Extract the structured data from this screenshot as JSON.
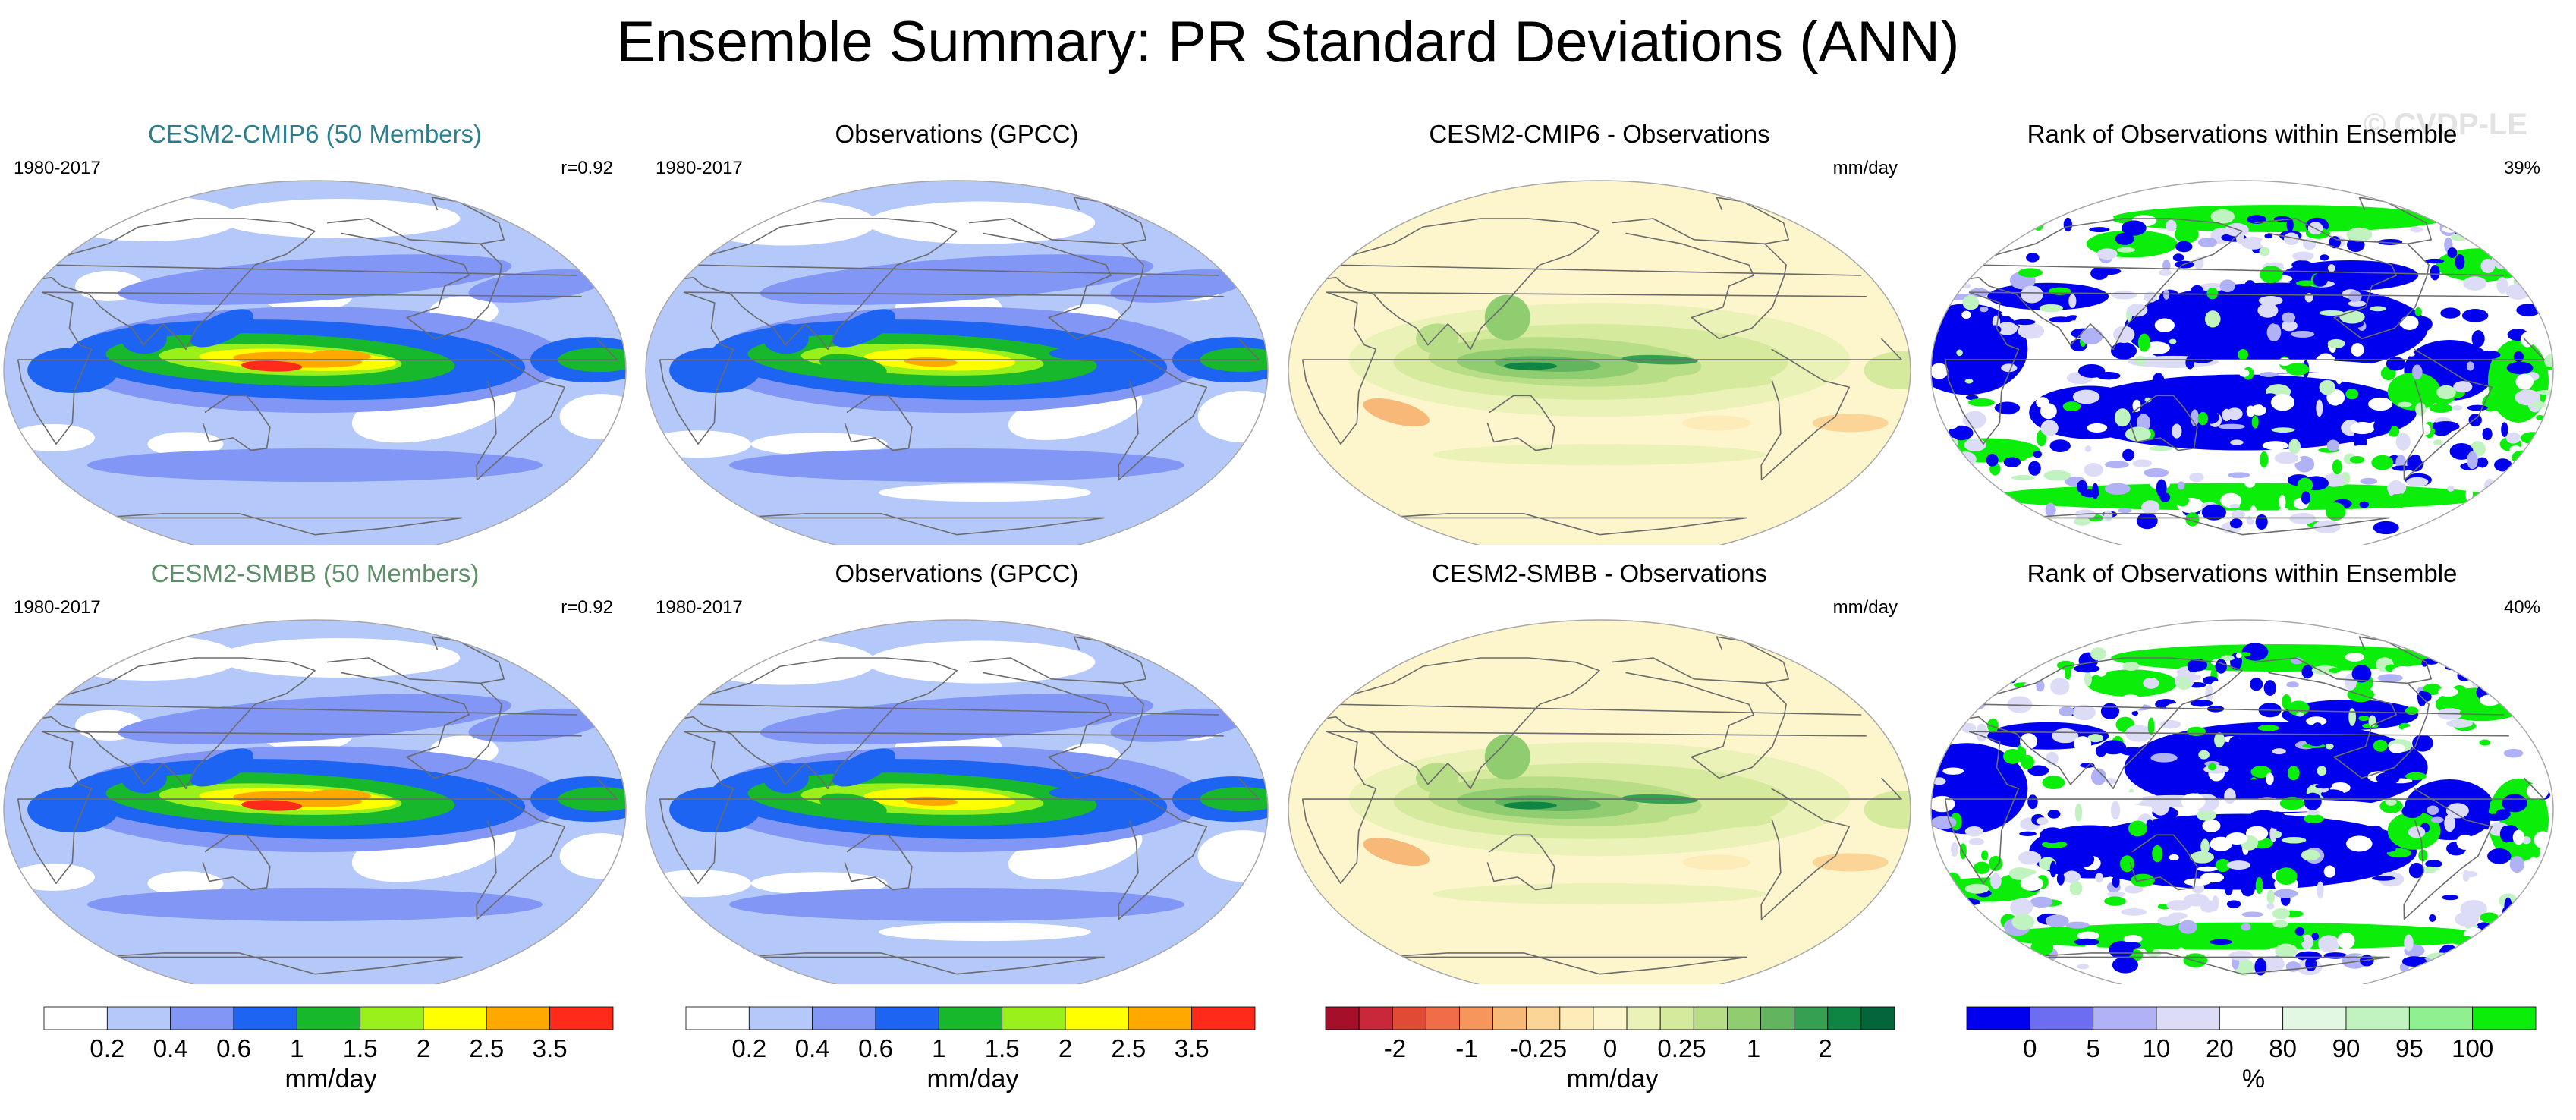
{
  "title": "Ensemble Summary: PR Standard Deviations (ANN)",
  "watermark": "© CVDP-LE",
  "colors": {
    "ensemble_title_1": "#2a7f8f",
    "ensemble_title_2": "#5f8f6a",
    "land_line": "#6b6b6b",
    "outline": "#a8a8a8"
  },
  "panels": [
    {
      "id": "p11",
      "title": "CESM2-CMIP6 (50 Members)",
      "left_label": "1980-2017",
      "right_label": "r=0.92",
      "kind": "model_std",
      "title_color_key": "ensemble_title_1"
    },
    {
      "id": "p12",
      "title": "Observations (GPCC)",
      "left_label": "1980-2017",
      "right_label": "",
      "kind": "obs_std"
    },
    {
      "id": "p13",
      "title": "CESM2-CMIP6 - Observations",
      "left_label": "",
      "right_label": "mm/day",
      "kind": "diff"
    },
    {
      "id": "p14",
      "title": "Rank of Observations within Ensemble",
      "left_label": "",
      "right_label": "39%",
      "kind": "rank"
    },
    {
      "id": "p21",
      "title": "CESM2-SMBB (50 Members)",
      "left_label": "1980-2017",
      "right_label": "r=0.92",
      "kind": "model_std",
      "title_color_key": "ensemble_title_2"
    },
    {
      "id": "p22",
      "title": "Observations (GPCC)",
      "left_label": "1980-2017",
      "right_label": "",
      "kind": "obs_std"
    },
    {
      "id": "p23",
      "title": "CESM2-SMBB - Observations",
      "left_label": "",
      "right_label": "mm/day",
      "kind": "diff"
    },
    {
      "id": "p24",
      "title": "Rank of Observations within Ensemble",
      "left_label": "",
      "right_label": "40%",
      "kind": "rank"
    }
  ],
  "chart_data": [
    {
      "type": "heatmap",
      "name": "std-colorbar",
      "colors": [
        "#ffffff",
        "#b4c8f9",
        "#8196f5",
        "#1d64f2",
        "#18b82c",
        "#9af01a",
        "#ffff00",
        "#ffa800",
        "#ff2a1a"
      ],
      "tick_labels": [
        "0.2",
        "0.4",
        "0.6",
        "1",
        "1.5",
        "2",
        "2.5",
        "3.5"
      ],
      "unit": "mm/day"
    },
    {
      "type": "heatmap",
      "name": "diff-colorbar",
      "colors": [
        "#a50f2a",
        "#c8283a",
        "#e04b36",
        "#f06d48",
        "#f6955c",
        "#f8b878",
        "#fbd598",
        "#fdebb8",
        "#fdf5cc",
        "#eaf2b8",
        "#d6ea9e",
        "#b7de86",
        "#90cc70",
        "#62b55e",
        "#35a052",
        "#0e8543",
        "#05653a"
      ],
      "tick_labels": [
        "-2",
        "-1",
        "-0.25",
        "0",
        "0.25",
        "1",
        "2"
      ],
      "unit": "mm/day"
    },
    {
      "type": "heatmap",
      "name": "rank-colorbar",
      "colors": [
        "#0000ee",
        "#6d6df2",
        "#b1b1f5",
        "#dcdcf7",
        "#ffffff",
        "#e2f8e2",
        "#c0f3c0",
        "#8ef08e",
        "#0aee0a"
      ],
      "tick_labels": [
        "0",
        "5",
        "10",
        "20",
        "80",
        "90",
        "95",
        "100"
      ],
      "unit": "%"
    }
  ]
}
